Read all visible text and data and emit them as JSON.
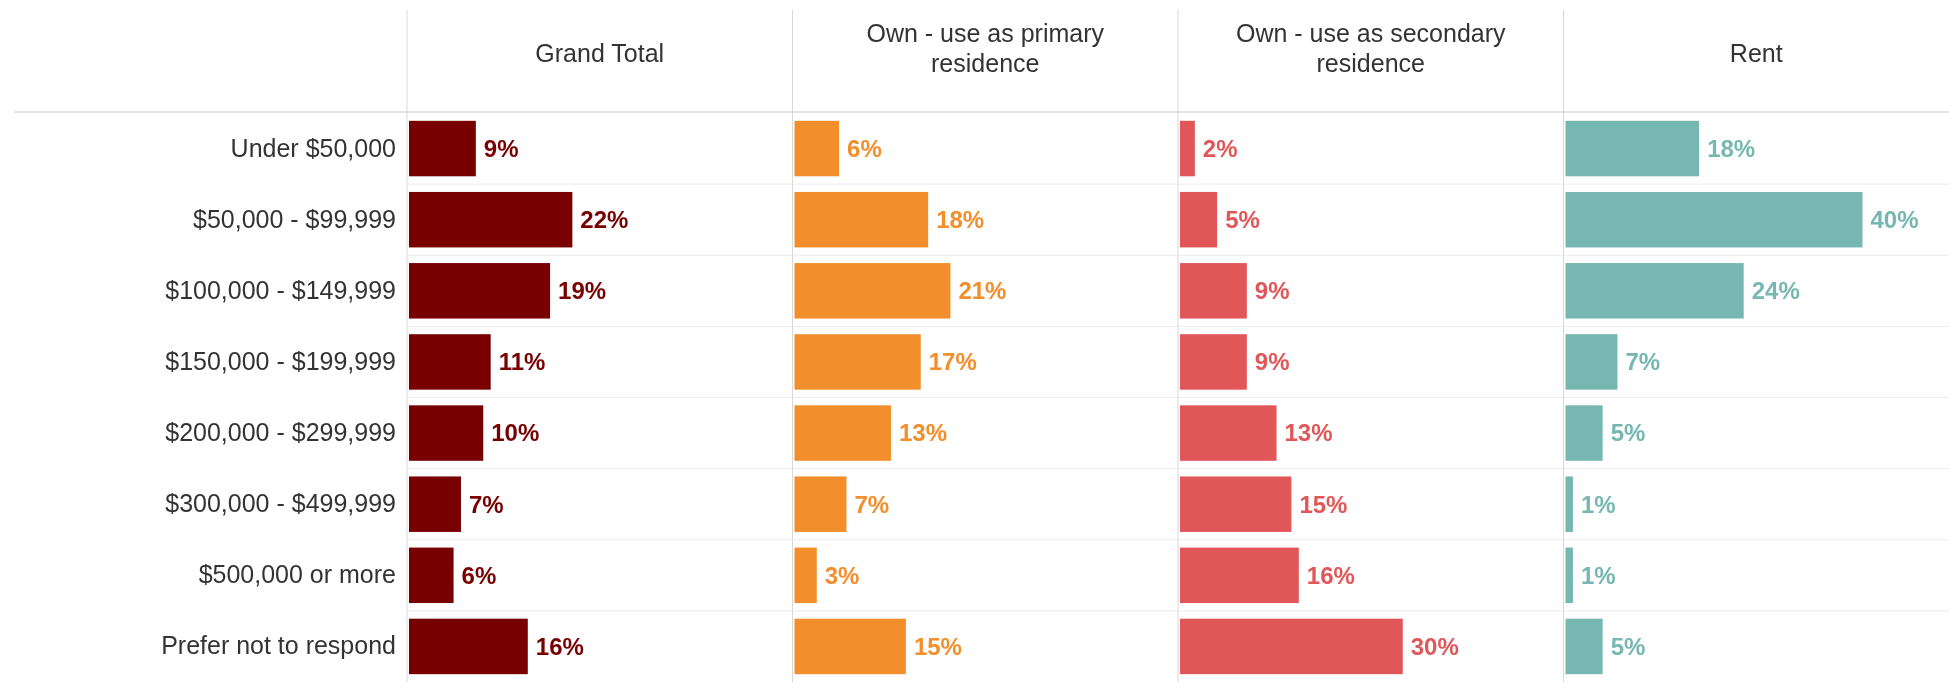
{
  "chart_data": [
    {
      "type": "bar",
      "orientation": "horizontal",
      "title": "Grand Total",
      "categories": [
        "Under $50,000",
        "$50,000 - $99,999",
        "$100,000 - $149,999",
        "$150,000 - $199,999",
        "$200,000 - $299,999",
        "$300,000 - $499,999",
        "$500,000 or more",
        "Prefer not to respond"
      ],
      "values": [
        9,
        22,
        19,
        11,
        10,
        7,
        6,
        16
      ],
      "value_labels": [
        "9%",
        "22%",
        "19%",
        "11%",
        "10%",
        "7%",
        "6%",
        "16%"
      ],
      "color": "#790000",
      "tick_labels": "y",
      "grid": "y"
    },
    {
      "type": "bar",
      "orientation": "horizontal",
      "title": "Own - use as primary residence",
      "categories": [
        null,
        null,
        null,
        null,
        null,
        null,
        null,
        null
      ],
      "values": [
        6,
        18,
        21,
        17,
        13,
        7,
        3,
        15
      ],
      "value_labels": [
        "6%",
        "18%",
        "21%",
        "17%",
        "13%",
        "7%",
        "3%",
        "15%"
      ],
      "color": "#f28e2b",
      "tick_labels": false,
      "grid": "y"
    },
    {
      "type": "bar",
      "orientation": "horizontal",
      "title": "Own - use as secondary residence",
      "categories": [
        null,
        null,
        null,
        null,
        null,
        null,
        null,
        null
      ],
      "values": [
        2,
        5,
        9,
        9,
        13,
        15,
        16,
        30
      ],
      "value_labels": [
        "2%",
        "5%",
        "9%",
        "9%",
        "13%",
        "15%",
        "16%",
        "30%"
      ],
      "color": "#e15759",
      "tick_labels": false,
      "grid": "y"
    },
    {
      "type": "bar",
      "orientation": "horizontal",
      "title": "Rent",
      "categories": [
        null,
        null,
        null,
        null,
        null,
        null,
        null,
        null
      ],
      "values": [
        18,
        40,
        24,
        7,
        5,
        1,
        1,
        5
      ],
      "value_labels": [
        "18%",
        "40%",
        "24%",
        "7%",
        "5%",
        "1%",
        "1%",
        "5%"
      ],
      "color": "#76b7b2",
      "tick_labels": false,
      "grid": "y"
    }
  ]
}
